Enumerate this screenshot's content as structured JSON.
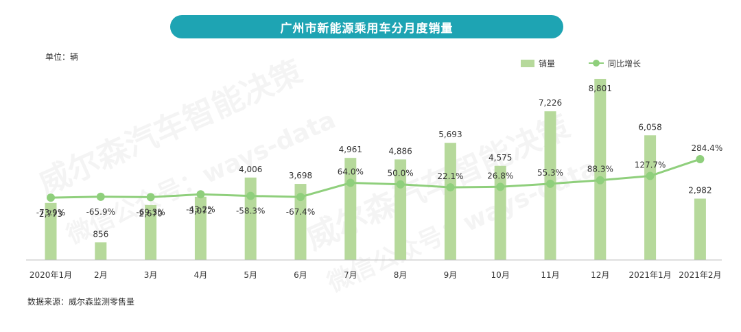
{
  "title": "广州市新能源乘用车分月度销量",
  "unit_label": "单位：辆",
  "source_label": "数据来源：威尔森监测零售量",
  "watermark": {
    "line1": "威尔森汽车智能决策",
    "line2": "微信公众号：ways-data"
  },
  "colors": {
    "title_bg": "#1ea4b3",
    "bar": "#b6d99b",
    "line": "#8fcf7c"
  },
  "chart_data": {
    "type": "bar",
    "categories": [
      "2020年1月",
      "2月",
      "3月",
      "4月",
      "5月",
      "6月",
      "7月",
      "8月",
      "9月",
      "10月",
      "11月",
      "12月",
      "2021年1月",
      "2021年2月"
    ],
    "series": [
      {
        "name": "销量",
        "type": "bar",
        "values": [
          2773,
          856,
          2670,
          3072,
          4006,
          3698,
          4961,
          4886,
          5693,
          4575,
          7226,
          8801,
          6058,
          2982
        ],
        "labels": [
          "2,773",
          "856",
          "2,670",
          "3,072",
          "4,006",
          "3,698",
          "4,961",
          "4,886",
          "5,693",
          "4,575",
          "7,226",
          "8,801",
          "6,058",
          "2,982"
        ]
      },
      {
        "name": "同比增长",
        "type": "line",
        "values": [
          -73.9,
          -65.9,
          -69.3,
          -43.2,
          -58.3,
          -67.4,
          64.0,
          50.0,
          22.1,
          26.8,
          55.3,
          88.3,
          127.7,
          284.4
        ],
        "labels": [
          "-73.9%",
          "-65.9%",
          "-69.3%",
          "-43.2%",
          "-58.3%",
          "-67.4%",
          "64.0%",
          "50.0%",
          "22.1%",
          "26.8%",
          "55.3%",
          "88.3%",
          "127.7%",
          "284.4%"
        ]
      }
    ],
    "ylim": [
      0,
      9000
    ],
    "y2lim": [
      -150,
      1000
    ],
    "legend_position": "top-right",
    "grid": false
  }
}
